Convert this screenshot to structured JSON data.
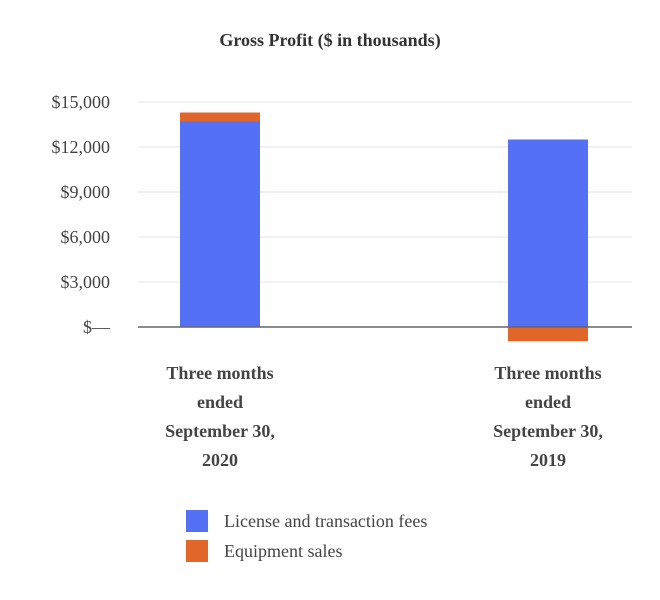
{
  "chart_data": {
    "type": "bar",
    "stacked": true,
    "title": "Gross Profit ($ in thousands)",
    "categories": [
      "Three months ended September 30, 2020",
      "Three months ended September 30, 2019"
    ],
    "category_lines": [
      [
        "Three months",
        "ended",
        "September 30,",
        "2020"
      ],
      [
        "Three months",
        "ended",
        "September 30,",
        "2019"
      ]
    ],
    "series": [
      {
        "name": "License and transaction fees",
        "color": "#5470f5",
        "values": [
          13700,
          12500
        ]
      },
      {
        "name": "Equipment sales",
        "color": "#e0662a",
        "values": [
          600,
          -950
        ]
      }
    ],
    "ylim": [
      0,
      15000
    ],
    "yticks": [
      0,
      3000,
      6000,
      9000,
      12000,
      15000
    ],
    "ytick_labels": [
      "$—",
      "$3,000",
      "$6,000",
      "$9,000",
      "$12,000",
      "$15,000"
    ],
    "grid": true,
    "legend_position": "bottom"
  }
}
